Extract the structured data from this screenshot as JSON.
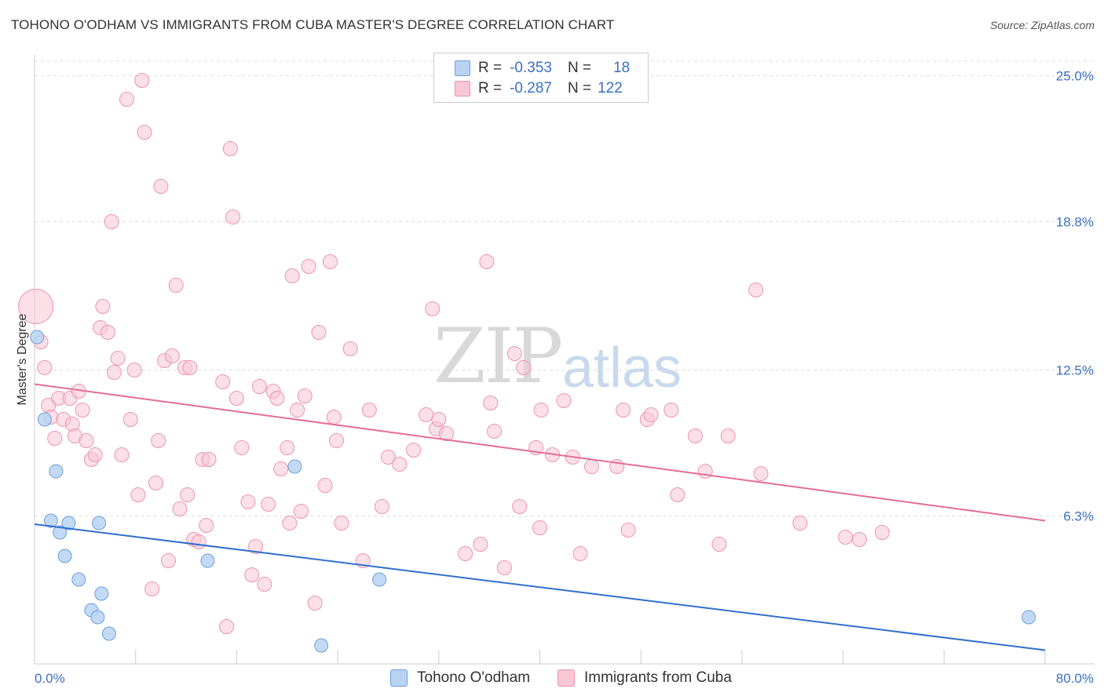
{
  "title": "TOHONO O'ODHAM VS IMMIGRANTS FROM CUBA MASTER'S DEGREE CORRELATION CHART",
  "source": "Source: ZipAtlas.com",
  "watermark": {
    "zip": "ZIP",
    "atlas": "atlas"
  },
  "legend": {
    "rows": [
      {
        "r_label": "R =",
        "r_value": "-0.353",
        "n_label": "N =",
        "n_value": "18"
      },
      {
        "r_label": "R =",
        "r_value": "-0.287",
        "n_label": "N =",
        "n_value": "122"
      }
    ]
  },
  "bottom_legend": [
    {
      "label": "Tohono O'odham"
    },
    {
      "label": "Immigrants from Cuba"
    }
  ],
  "colors": {
    "blue_fill": "#b9d3f2",
    "blue_stroke": "#6d9ee0",
    "blue_line": "#2f6fd1",
    "pink_fill": "#f8c6d5",
    "pink_stroke": "#ee93ae",
    "pink_line": "#e46d95",
    "grid": "#dddddd",
    "tick_text": "#3a6fc4"
  },
  "chart_data": {
    "type": "scatter",
    "title": "TOHONO O'ODHAM VS IMMIGRANTS FROM CUBA MASTER'S DEGREE CORRELATION CHART",
    "xlabel": "",
    "ylabel": "Master's Degree",
    "xlim": [
      0,
      80
    ],
    "ylim": [
      0,
      26
    ],
    "x_tick_labels": [
      "0.0%",
      "80.0%"
    ],
    "y_ticks": [
      {
        "value": 6.3,
        "label": "6.3%"
      },
      {
        "value": 12.5,
        "label": "12.5%"
      },
      {
        "value": 18.8,
        "label": "18.8%"
      },
      {
        "value": 25.0,
        "label": "25.0%"
      }
    ],
    "grid": true,
    "legend_position": "top-center",
    "series": [
      {
        "name": "Tohono O'odham",
        "color": "blue",
        "r": -0.353,
        "n": 18,
        "trend": [
          [
            0,
            5.95
          ],
          [
            80,
            0.6
          ]
        ],
        "points": [
          [
            0.2,
            13.9
          ],
          [
            0.8,
            10.4
          ],
          [
            1.7,
            8.2
          ],
          [
            1.3,
            6.1
          ],
          [
            2.7,
            6.0
          ],
          [
            2.0,
            5.6
          ],
          [
            2.4,
            4.6
          ],
          [
            5.1,
            6.0
          ],
          [
            5.3,
            3.0
          ],
          [
            3.5,
            3.6
          ],
          [
            4.5,
            2.3
          ],
          [
            5.0,
            2.0
          ],
          [
            5.9,
            1.3
          ],
          [
            13.7,
            4.4
          ],
          [
            20.6,
            8.4
          ],
          [
            22.7,
            0.8
          ],
          [
            27.3,
            3.6
          ],
          [
            78.7,
            2.0
          ]
        ]
      },
      {
        "name": "Immigrants from Cuba",
        "color": "pink",
        "r": -0.287,
        "n": 122,
        "trend": [
          [
            0,
            11.9
          ],
          [
            80,
            6.1
          ]
        ],
        "points": [
          [
            0.1,
            15.2
          ],
          [
            0.5,
            13.7
          ],
          [
            0.8,
            12.6
          ],
          [
            1.1,
            11.0
          ],
          [
            1.3,
            10.5
          ],
          [
            1.6,
            9.6
          ],
          [
            1.9,
            11.3
          ],
          [
            2.3,
            10.4
          ],
          [
            2.8,
            11.3
          ],
          [
            3.0,
            10.2
          ],
          [
            3.2,
            9.7
          ],
          [
            3.5,
            11.6
          ],
          [
            3.8,
            10.8
          ],
          [
            4.1,
            9.5
          ],
          [
            4.5,
            8.7
          ],
          [
            4.8,
            8.9
          ],
          [
            5.2,
            14.3
          ],
          [
            5.4,
            15.2
          ],
          [
            5.8,
            14.1
          ],
          [
            6.1,
            18.8
          ],
          [
            6.3,
            12.4
          ],
          [
            6.6,
            13.0
          ],
          [
            6.9,
            8.9
          ],
          [
            7.3,
            24.0
          ],
          [
            7.6,
            10.4
          ],
          [
            7.9,
            12.5
          ],
          [
            8.2,
            7.2
          ],
          [
            8.5,
            24.8
          ],
          [
            8.7,
            22.6
          ],
          [
            9.3,
            3.2
          ],
          [
            9.6,
            7.7
          ],
          [
            9.8,
            9.5
          ],
          [
            10.0,
            20.3
          ],
          [
            10.3,
            12.9
          ],
          [
            10.6,
            4.4
          ],
          [
            10.9,
            13.1
          ],
          [
            11.2,
            16.1
          ],
          [
            11.5,
            6.6
          ],
          [
            11.9,
            12.6
          ],
          [
            12.1,
            7.2
          ],
          [
            12.3,
            12.6
          ],
          [
            12.6,
            5.3
          ],
          [
            13.0,
            5.2
          ],
          [
            13.3,
            8.7
          ],
          [
            13.6,
            5.9
          ],
          [
            13.8,
            8.7
          ],
          [
            14.9,
            12.0
          ],
          [
            15.2,
            1.6
          ],
          [
            15.5,
            21.9
          ],
          [
            15.7,
            19.0
          ],
          [
            16.0,
            11.3
          ],
          [
            16.4,
            9.2
          ],
          [
            16.9,
            6.9
          ],
          [
            17.2,
            3.8
          ],
          [
            17.5,
            5.0
          ],
          [
            17.8,
            11.8
          ],
          [
            18.2,
            3.4
          ],
          [
            18.5,
            6.8
          ],
          [
            18.9,
            11.6
          ],
          [
            19.2,
            11.3
          ],
          [
            19.5,
            8.3
          ],
          [
            20.0,
            9.2
          ],
          [
            20.2,
            6.0
          ],
          [
            20.4,
            16.5
          ],
          [
            20.8,
            10.8
          ],
          [
            21.1,
            6.5
          ],
          [
            21.4,
            11.4
          ],
          [
            21.7,
            16.9
          ],
          [
            22.2,
            2.6
          ],
          [
            22.5,
            14.1
          ],
          [
            23.0,
            7.6
          ],
          [
            23.4,
            17.1
          ],
          [
            23.7,
            10.5
          ],
          [
            23.9,
            9.5
          ],
          [
            24.3,
            6.0
          ],
          [
            25.0,
            13.4
          ],
          [
            26.0,
            4.4
          ],
          [
            26.5,
            10.8
          ],
          [
            27.5,
            6.7
          ],
          [
            28.0,
            8.8
          ],
          [
            28.9,
            8.5
          ],
          [
            30.0,
            9.1
          ],
          [
            31.0,
            10.6
          ],
          [
            31.5,
            15.1
          ],
          [
            31.8,
            10.0
          ],
          [
            32.0,
            10.4
          ],
          [
            32.6,
            9.8
          ],
          [
            34.1,
            4.7
          ],
          [
            35.3,
            5.1
          ],
          [
            35.8,
            17.1
          ],
          [
            36.1,
            11.1
          ],
          [
            36.4,
            9.9
          ],
          [
            37.2,
            4.1
          ],
          [
            38.0,
            13.2
          ],
          [
            38.4,
            6.7
          ],
          [
            38.7,
            12.6
          ],
          [
            39.7,
            9.2
          ],
          [
            40.0,
            5.8
          ],
          [
            40.1,
            10.8
          ],
          [
            41.0,
            8.9
          ],
          [
            41.9,
            11.2
          ],
          [
            42.6,
            8.8
          ],
          [
            43.2,
            4.7
          ],
          [
            44.1,
            8.4
          ],
          [
            46.1,
            8.4
          ],
          [
            46.6,
            10.8
          ],
          [
            47.0,
            5.7
          ],
          [
            48.5,
            10.4
          ],
          [
            48.8,
            10.6
          ],
          [
            50.4,
            10.8
          ],
          [
            50.9,
            7.2
          ],
          [
            52.3,
            9.7
          ],
          [
            53.1,
            8.2
          ],
          [
            54.2,
            5.1
          ],
          [
            54.9,
            9.7
          ],
          [
            57.1,
            15.9
          ],
          [
            57.5,
            8.1
          ],
          [
            60.6,
            6.0
          ],
          [
            64.2,
            5.4
          ],
          [
            65.3,
            5.3
          ],
          [
            67.1,
            5.6
          ]
        ]
      }
    ]
  }
}
